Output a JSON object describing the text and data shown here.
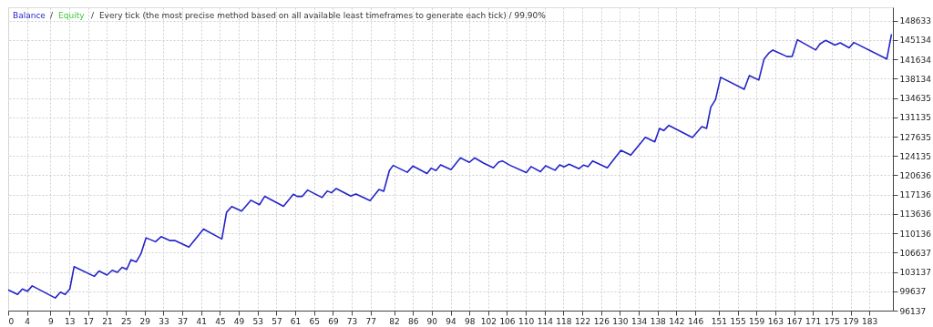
{
  "chart_data": {
    "type": "line",
    "title": "Every tick (the most precise method based on all available least timeframes to generate each tick) / 99.90%",
    "x": [
      0,
      2.0,
      3.0,
      4.1,
      5.1,
      10.0,
      11.1,
      12.1,
      13.1,
      14.0,
      18.3,
      19.3,
      21.0,
      22.1,
      23.2,
      24.2,
      25.2,
      26.1,
      27.2,
      28.2,
      29.3,
      31.3,
      32.5,
      34.3,
      35.4,
      38.4,
      41.5,
      45.4,
      46.4,
      47.5,
      49.6,
      51.6,
      53.4,
      54.5,
      58.5,
      60.6,
      61.4,
      62.5,
      63.6,
      66.7,
      67.8,
      68.7,
      69.7,
      72.8,
      73.9,
      76.9,
      78.8,
      79.8,
      81.0,
      81.8,
      84.8,
      86.0,
      89.0,
      89.9,
      90.9,
      91.9,
      94.1,
      96.1,
      98.0,
      99.1,
      101.0,
      103.1,
      104.2,
      105.0,
      106.7,
      110.1,
      111.1,
      113.1,
      114.2,
      116.2,
      117.2,
      118.1,
      119.2,
      121.3,
      122.3,
      123.2,
      124.2,
      127.3,
      130.2,
      132.3,
      135.4,
      137.4,
      138.4,
      139.3,
      140.4,
      145.4,
      147.4,
      148.4,
      149.3,
      150.3,
      151.4,
      156.4,
      157.5,
      159.5,
      160.6,
      161.6,
      162.5,
      165.5,
      166.6,
      167.7,
      171.6,
      172.5,
      173.7,
      175.7,
      176.8,
      178.7,
      179.7,
      186.7,
      187.7
    ],
    "series": [
      {
        "name": "Balance",
        "color": "#2424c8",
        "values": [
          99890,
          99080,
          100056,
          99632,
          100611,
          98423,
          99468,
          99076,
          100056,
          104090,
          102342,
          103322,
          102571,
          103437,
          103061,
          103975,
          103600,
          105347,
          104955,
          106425,
          109315,
          108613,
          109528,
          108825,
          108825,
          107633,
          110899,
          109103,
          113937,
          114982,
          114165,
          116125,
          115308,
          116827,
          115031,
          117203,
          116827,
          116827,
          117970,
          116615,
          117807,
          117480,
          118248,
          116876,
          117268,
          116060,
          118085,
          117758,
          121514,
          122428,
          121187,
          122330,
          120959,
          121938,
          121514,
          122543,
          121677,
          123800,
          122984,
          123800,
          122869,
          122004,
          123032,
          123245,
          122428,
          121122,
          122216,
          121285,
          122379,
          121563,
          122543,
          122167,
          122657,
          121840,
          122494,
          122216,
          123245,
          122004,
          125155,
          124290,
          127523,
          126707,
          129124,
          128748,
          129679,
          127491,
          129450,
          129124,
          132994,
          134349,
          138383,
          136211,
          138709,
          137893,
          141649,
          142743,
          143331,
          142139,
          142188,
          145192,
          143331,
          144425,
          145078,
          144213,
          144637,
          143723,
          144702,
          141698,
          146172
        ]
      },
      {
        "name": "Equity",
        "color": "#3cc83c",
        "values": [
          null,
          null,
          null,
          null,
          null,
          null,
          null,
          null,
          null,
          null,
          null,
          null,
          null,
          null,
          null,
          null,
          null,
          null,
          null,
          null,
          null,
          null,
          null,
          null,
          null,
          null,
          null,
          null,
          null,
          null,
          null,
          null,
          null,
          null,
          null,
          null,
          null,
          null,
          null,
          null,
          null,
          null,
          null,
          null,
          null,
          null,
          null,
          null,
          null,
          null,
          null,
          null,
          null,
          null,
          null,
          null,
          null,
          null,
          null,
          null,
          null,
          null,
          null,
          null,
          null,
          null,
          null,
          null,
          null,
          null,
          null,
          null,
          null,
          null,
          null,
          null,
          null,
          null,
          null,
          null,
          null,
          null,
          null,
          null,
          null,
          null,
          null,
          null,
          null,
          null,
          null,
          null,
          null,
          null,
          null,
          null,
          null,
          null,
          null,
          null,
          null,
          null,
          null,
          null,
          null,
          null,
          null,
          null,
          null
        ]
      }
    ],
    "xlim": [
      0,
      188
    ],
    "xticks": [
      0,
      4,
      9,
      13,
      17,
      21,
      25,
      29,
      33,
      37,
      41,
      45,
      49,
      53,
      57,
      61,
      65,
      69,
      73,
      77,
      82,
      86,
      90,
      94,
      98,
      102,
      106,
      110,
      114,
      118,
      122,
      126,
      130,
      134,
      138,
      142,
      146,
      151,
      155,
      159,
      163,
      167,
      171,
      175,
      179,
      183
    ],
    "ylim": [
      96137,
      151070
    ],
    "yticks": [
      96137,
      99637,
      103137,
      106637,
      110136,
      113636,
      117136,
      120636,
      124135,
      127635,
      131135,
      134635,
      138134,
      141634,
      145134,
      148633
    ],
    "grid": true,
    "legend": "top left",
    "annotations": [
      "/",
      "/"
    ],
    "line_style": "solid"
  }
}
